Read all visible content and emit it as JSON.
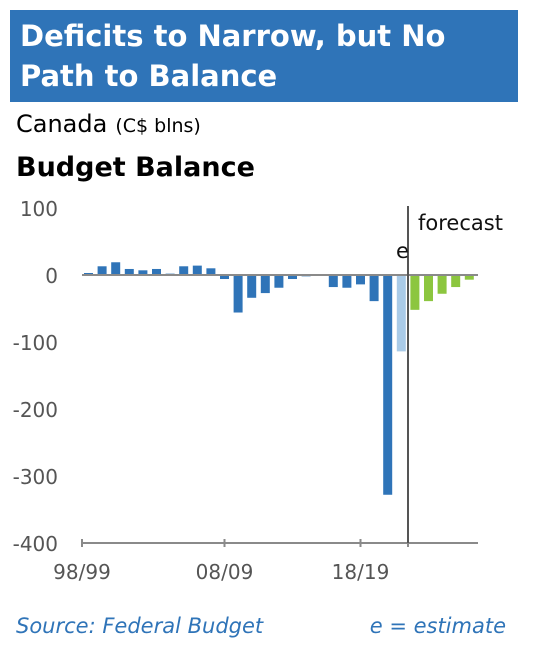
{
  "header": {
    "title": "Deficits to Narrow, but No Path to Balance"
  },
  "subtitle": {
    "country": "Canada",
    "units": "(C$ blns)"
  },
  "panel_title": "Budget Balance",
  "footer": {
    "source": "Source: Federal Budget",
    "note": "e = estimate"
  },
  "colors": {
    "title_bg": "#2f74b8",
    "actual": "#2f74b8",
    "estimate": "#a9cbe8",
    "forecast": "#8cc63f",
    "axis": "#666666"
  },
  "chart_data": {
    "type": "bar",
    "title": "Budget Balance",
    "units": "C$ blns",
    "ylim": [
      -400,
      100
    ],
    "y_ticks": [
      100,
      0,
      -100,
      -200,
      -300,
      -400
    ],
    "x_tick_labels": [
      "98/99",
      "08/09",
      "18/19"
    ],
    "x_tick_positions": [
      "98/99",
      "08/09",
      "18/19"
    ],
    "forecast_label": "forecast",
    "estimate_marker": "e",
    "categories": [
      "98/99",
      "99/00",
      "00/01",
      "01/02",
      "02/03",
      "03/04",
      "04/05",
      "05/06",
      "06/07",
      "07/08",
      "08/09",
      "09/10",
      "10/11",
      "11/12",
      "12/13",
      "13/14",
      "14/15",
      "15/16",
      "16/17",
      "17/18",
      "18/19",
      "19/20",
      "20/21",
      "21/22",
      "22/23",
      "23/24",
      "24/25",
      "25/26"
    ],
    "values": [
      3,
      13,
      19,
      9,
      7,
      9,
      2,
      13,
      14,
      10,
      -6,
      -56,
      -34,
      -27,
      -19,
      -6,
      -2,
      -1,
      -18,
      -19,
      -14,
      -39,
      -328,
      -114,
      -52,
      -39,
      -28,
      -18
    ],
    "bar_types": [
      "actual",
      "actual",
      "actual",
      "actual",
      "actual",
      "actual",
      "actual",
      "actual",
      "actual",
      "actual",
      "actual",
      "actual",
      "actual",
      "actual",
      "actual",
      "actual",
      "actual",
      "actual",
      "actual",
      "actual",
      "actual",
      "actual",
      "actual",
      "estimate",
      "forecast",
      "forecast",
      "forecast",
      "forecast"
    ],
    "tail_forecast_value": -7,
    "tail_forecast_category": "26/27",
    "grid": false
  }
}
